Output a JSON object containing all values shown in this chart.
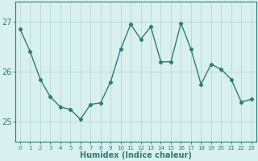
{
  "x": [
    0,
    1,
    2,
    3,
    4,
    5,
    6,
    7,
    8,
    9,
    10,
    11,
    12,
    13,
    14,
    15,
    16,
    17,
    18,
    19,
    20,
    21,
    22,
    23
  ],
  "y": [
    26.85,
    26.4,
    25.85,
    25.5,
    25.3,
    25.25,
    25.05,
    25.35,
    25.38,
    25.8,
    26.45,
    26.95,
    26.65,
    26.9,
    26.2,
    26.2,
    26.97,
    26.45,
    25.75,
    26.15,
    26.05,
    25.85,
    25.4,
    25.45
  ],
  "line_color": "#2d7d78",
  "marker": "D",
  "markersize": 2.2,
  "linewidth": 1.0,
  "bg_color": "#d8f0ee",
  "grid_color": "#b8d8d4",
  "tick_color": "#2d7d78",
  "xlabel": "Humidex (Indice chaleur)",
  "xlabel_fontsize": 7,
  "ylabel_ticks": [
    25,
    26,
    27
  ],
  "ylim": [
    24.6,
    27.4
  ],
  "xlim": [
    -0.5,
    23.5
  ],
  "xtick_labels": [
    "0",
    "1",
    "2",
    "3",
    "4",
    "5",
    "6",
    "7",
    "8",
    "9",
    "10",
    "11",
    "12",
    "13",
    "14",
    "15",
    "16",
    "17",
    "18",
    "19",
    "20",
    "21",
    "22",
    "23"
  ],
  "font_color": "#2d7d78",
  "ytick_fontsize": 7,
  "xtick_fontsize": 5
}
